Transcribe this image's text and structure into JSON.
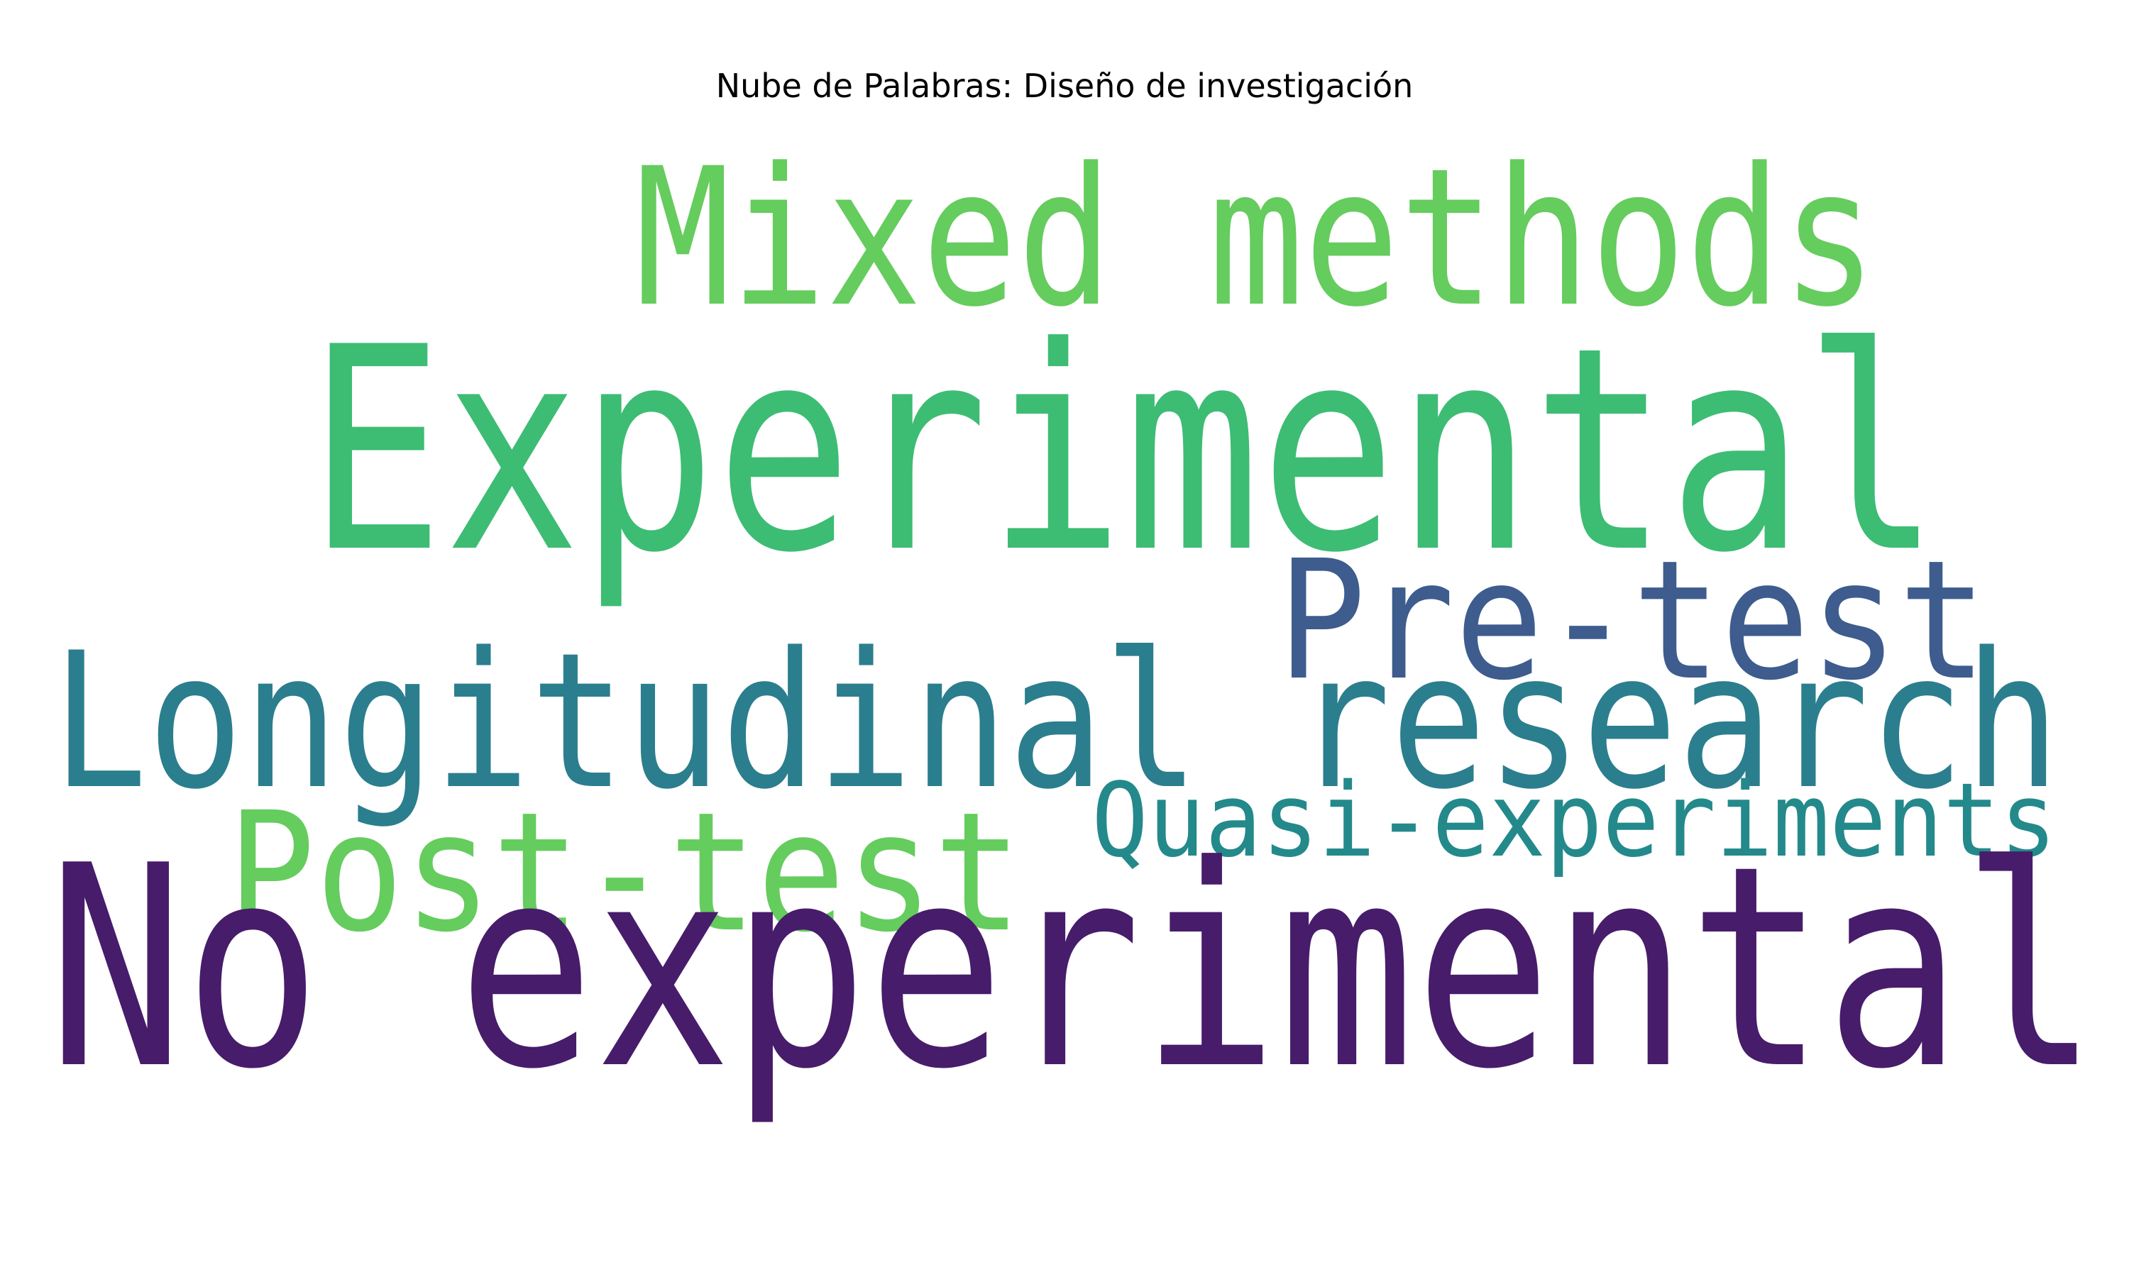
{
  "chart_data": {
    "type": "wordcloud",
    "title": "Nube de Palabras: Diseño de investigación",
    "words": [
      {
        "text": "Experimental",
        "color": "#3dbc74"
      },
      {
        "text": "No experimental",
        "color": "#471c6a"
      },
      {
        "text": "Mixed methods",
        "color": "#65cc5e"
      },
      {
        "text": "Longitudinal research",
        "color": "#2b7e8d"
      },
      {
        "text": "Pre‐test",
        "color": "#3e5c8d"
      },
      {
        "text": "Post‐test",
        "color": "#65cc5e"
      },
      {
        "text": "Quasi‐experiments",
        "color": "#24898b"
      }
    ]
  }
}
